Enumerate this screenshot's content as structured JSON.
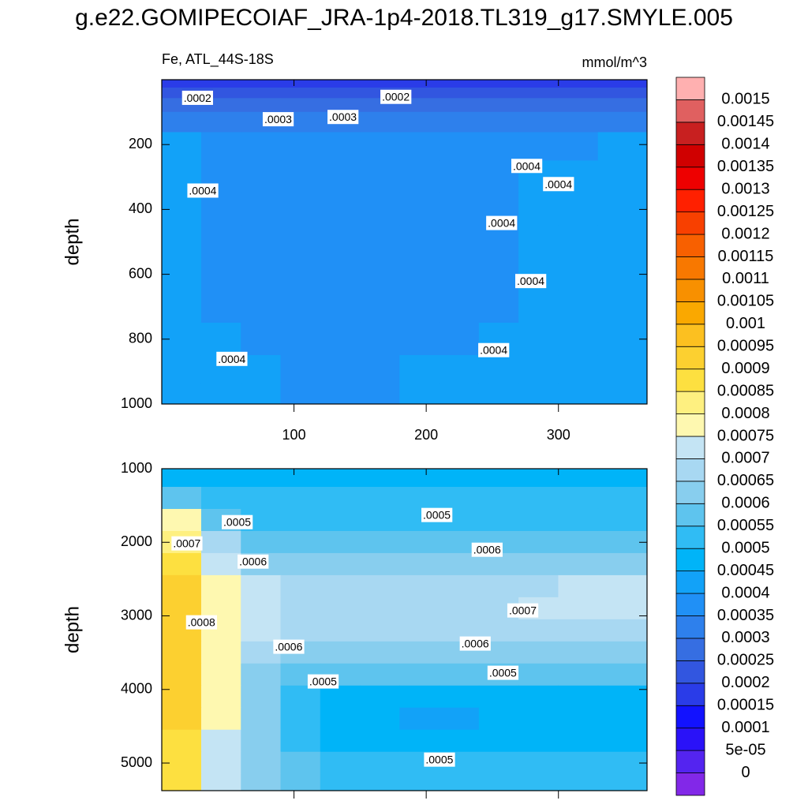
{
  "title": "g.e22.GOMIPECOIAF_JRA-1p4-2018.TL319_g17.SMYLE.005",
  "colorbar": {
    "levels": [
      0,
      {
        "value": 5e-05,
        "label": "5e-05"
      },
      0.0001,
      0.00015,
      0.0002,
      0.00025,
      0.0003,
      0.00035,
      0.0004,
      0.00045,
      0.0005,
      0.00055,
      0.0006,
      0.00065,
      0.0007,
      0.00075,
      0.0008,
      0.00085,
      0.0009,
      0.00095,
      0.001,
      0.00105,
      0.0011,
      0.00115,
      0.0012,
      0.00125,
      0.0013,
      0.00135,
      0.0014,
      0.00145,
      0.0015
    ],
    "colors": [
      "#8228E8",
      "#5424F0",
      "#2A12F8",
      "#1212FF",
      "#2A3CE8",
      "#3256E0",
      "#366EE2",
      "#2E80EC",
      "#2090F6",
      "#12A2F8",
      "#00B4F8",
      "#30BCF4",
      "#5EC4EE",
      "#88CEEE",
      "#A8D8F2",
      "#C4E4F4",
      "#FEF8B0",
      "#FEF080",
      "#FDE040",
      "#FCD030",
      "#FCC020",
      "#FAA800",
      "#F89000",
      "#F87800",
      "#F86000",
      "#F84000",
      "#FF2000",
      "#EE0000",
      "#D00000",
      "#C82020",
      "#E06060",
      "#FFB0B0"
    ]
  },
  "chart_data": [
    {
      "type": "contour",
      "left_label": "Fe, ATL_44S-18S",
      "right_label": "mmol/m^3",
      "ylabel": "depth",
      "xlim": [
        0,
        367
      ],
      "ylim": [
        0,
        1000
      ],
      "y_reversed": true,
      "xticks": [
        100,
        200,
        300
      ],
      "yticks": [
        200,
        400,
        600,
        800,
        1000
      ],
      "xtick_labels": true,
      "x": [
        15,
        45,
        75,
        105,
        135,
        165,
        195,
        225,
        255,
        285,
        315,
        345
      ],
      "y": [
        10,
        40,
        75,
        125,
        200,
        300,
        400,
        500,
        600,
        700,
        800,
        900,
        975
      ],
      "z": [
        [
          0.00018,
          0.00018,
          0.00018,
          0.00018,
          0.00018,
          0.00018,
          0.00018,
          0.00018,
          0.00018,
          0.00018,
          0.00018,
          0.00018
        ],
        [
          0.00022,
          0.00022,
          0.00022,
          0.00022,
          0.00022,
          0.00022,
          0.00022,
          0.00022,
          0.00022,
          0.00022,
          0.00022,
          0.00022
        ],
        [
          0.00028,
          0.00028,
          0.00028,
          0.00028,
          0.00028,
          0.00028,
          0.00028,
          0.00028,
          0.00028,
          0.00028,
          0.00028,
          0.00028
        ],
        [
          0.00032,
          0.00032,
          0.00032,
          0.00032,
          0.00032,
          0.00032,
          0.00032,
          0.00032,
          0.00032,
          0.00032,
          0.00032,
          0.00032
        ],
        [
          0.00041,
          0.00037,
          0.00037,
          0.00037,
          0.00037,
          0.00037,
          0.00037,
          0.00037,
          0.00037,
          0.00037,
          0.00037,
          0.00041
        ],
        [
          0.00042,
          0.00038,
          0.00038,
          0.00038,
          0.00038,
          0.00038,
          0.00038,
          0.00038,
          0.00038,
          0.00041,
          0.00041,
          0.00042
        ],
        [
          0.00042,
          0.00038,
          0.00038,
          0.00038,
          0.00038,
          0.00038,
          0.00038,
          0.00038,
          0.00038,
          0.00041,
          0.00041,
          0.00042
        ],
        [
          0.00042,
          0.00038,
          0.00038,
          0.00038,
          0.00038,
          0.00038,
          0.00038,
          0.00038,
          0.00038,
          0.00041,
          0.00041,
          0.00042
        ],
        [
          0.00042,
          0.00038,
          0.00038,
          0.00038,
          0.00038,
          0.00038,
          0.00038,
          0.00038,
          0.00038,
          0.00041,
          0.00041,
          0.00042
        ],
        [
          0.00042,
          0.00038,
          0.00038,
          0.00038,
          0.00038,
          0.00038,
          0.00038,
          0.00038,
          0.00038,
          0.00041,
          0.00041,
          0.00042
        ],
        [
          0.00043,
          0.00041,
          0.00039,
          0.00038,
          0.00038,
          0.00038,
          0.00038,
          0.00039,
          0.00041,
          0.00043,
          0.00043,
          0.00043
        ],
        [
          0.00044,
          0.00042,
          0.00041,
          0.00039,
          0.00039,
          0.00039,
          0.00041,
          0.00041,
          0.00042,
          0.00044,
          0.00044,
          0.00044
        ],
        [
          0.00044,
          0.00043,
          0.00041,
          0.00039,
          0.00039,
          0.00039,
          0.00041,
          0.00042,
          0.00043,
          0.00044,
          0.00044,
          0.00044
        ]
      ],
      "contour_labels": [
        {
          "text": ".0002",
          "x": 27,
          "y": 59
        },
        {
          "text": ".0002",
          "x": 177,
          "y": 56
        },
        {
          "text": ".0003",
          "x": 88,
          "y": 125
        },
        {
          "text": ".0003",
          "x": 137,
          "y": 118
        },
        {
          "text": ".0004",
          "x": 31,
          "y": 345
        },
        {
          "text": ".0004",
          "x": 276,
          "y": 269
        },
        {
          "text": ".0004",
          "x": 300,
          "y": 325
        },
        {
          "text": ".0004",
          "x": 257,
          "y": 445
        },
        {
          "text": ".0004",
          "x": 279,
          "y": 624
        },
        {
          "text": ".0004",
          "x": 53,
          "y": 864
        },
        {
          "text": ".0004",
          "x": 251,
          "y": 837
        }
      ]
    },
    {
      "type": "contour",
      "ylabel": "depth",
      "xlim": [
        0,
        367
      ],
      "ylim": [
        1000,
        5375
      ],
      "y_reversed": true,
      "xticks": [
        100,
        200,
        300
      ],
      "yticks": [
        1000,
        2000,
        3000,
        4000,
        5000
      ],
      "xtick_labels": false,
      "x": [
        15,
        45,
        75,
        105,
        135,
        165,
        195,
        225,
        255,
        285,
        315,
        345
      ],
      "y": [
        1100,
        1400,
        1700,
        2000,
        2300,
        2600,
        2900,
        3200,
        3500,
        3800,
        4100,
        4400,
        4700,
        5000,
        5300
      ],
      "z": [
        [
          0.00048,
          0.00046,
          0.00046,
          0.00046,
          0.00046,
          0.00046,
          0.00046,
          0.00046,
          0.00046,
          0.00046,
          0.00046,
          0.00046
        ],
        [
          0.00058,
          0.00052,
          0.00051,
          0.00051,
          0.00051,
          0.00051,
          0.00051,
          0.00051,
          0.00051,
          0.00051,
          0.00051,
          0.00051
        ],
        [
          0.00076,
          0.00058,
          0.00054,
          0.00054,
          0.00054,
          0.00054,
          0.00054,
          0.00054,
          0.00054,
          0.00054,
          0.00054,
          0.00054
        ],
        [
          0.00084,
          0.00066,
          0.00058,
          0.00057,
          0.00057,
          0.00057,
          0.00057,
          0.00057,
          0.00057,
          0.00058,
          0.00058,
          0.00058
        ],
        [
          0.00088,
          0.00071,
          0.00063,
          0.00062,
          0.00062,
          0.00062,
          0.00062,
          0.00062,
          0.00062,
          0.00063,
          0.00063,
          0.00063
        ],
        [
          0.00091,
          0.00076,
          0.00071,
          0.00066,
          0.00066,
          0.00066,
          0.00066,
          0.00066,
          0.00067,
          0.00068,
          0.00071,
          0.00071
        ],
        [
          0.00092,
          0.00078,
          0.00072,
          0.00068,
          0.00068,
          0.00068,
          0.00068,
          0.00068,
          0.00068,
          0.00071,
          0.00071,
          0.00071
        ],
        [
          0.00092,
          0.00078,
          0.00071,
          0.00066,
          0.00066,
          0.00066,
          0.00066,
          0.00066,
          0.00066,
          0.00066,
          0.00066,
          0.00066
        ],
        [
          0.00092,
          0.00077,
          0.00066,
          0.00061,
          0.00061,
          0.00061,
          0.00061,
          0.00061,
          0.00061,
          0.00061,
          0.00061,
          0.00061
        ],
        [
          0.00091,
          0.00076,
          0.00062,
          0.00056,
          0.00056,
          0.00056,
          0.00056,
          0.00056,
          0.00056,
          0.00056,
          0.00056,
          0.00056
        ],
        [
          0.00091,
          0.00075,
          0.00061,
          0.00053,
          0.00048,
          0.00048,
          0.00048,
          0.00048,
          0.00048,
          0.00048,
          0.00048,
          0.00048
        ],
        [
          0.00091,
          0.00075,
          0.00061,
          0.00051,
          0.00047,
          0.00046,
          0.00044,
          0.00044,
          0.00046,
          0.00046,
          0.00046,
          0.00046
        ],
        [
          0.00088,
          0.00074,
          0.00061,
          0.00052,
          0.00048,
          0.00047,
          0.00047,
          0.00047,
          0.00047,
          0.00047,
          0.00047,
          0.00047
        ],
        [
          0.00087,
          0.00073,
          0.00062,
          0.00055,
          0.00052,
          0.00051,
          0.00051,
          0.00051,
          0.00051,
          0.00051,
          0.00051,
          0.00051
        ],
        [
          0.00086,
          0.00074,
          0.00064,
          0.00057,
          0.00054,
          0.00053,
          0.00053,
          0.00053,
          0.00053,
          0.00053,
          0.00053,
          0.00053
        ]
      ],
      "contour_labels": [
        {
          "text": ".0005",
          "x": 57,
          "y": 1740
        },
        {
          "text": ".0005",
          "x": 208,
          "y": 1643
        },
        {
          "text": ".0007",
          "x": 19,
          "y": 2029
        },
        {
          "text": ".0006",
          "x": 69,
          "y": 2276
        },
        {
          "text": ".0006",
          "x": 246,
          "y": 2115
        },
        {
          "text": ".0008",
          "x": 30,
          "y": 3101
        },
        {
          "text": ".0007",
          "x": 273,
          "y": 2940
        },
        {
          "text": ".0006",
          "x": 96,
          "y": 3433
        },
        {
          "text": ".0006",
          "x": 237,
          "y": 3390
        },
        {
          "text": ".0005",
          "x": 258,
          "y": 3787
        },
        {
          "text": ".0005",
          "x": 122,
          "y": 3905
        },
        {
          "text": ".0005",
          "x": 210,
          "y": 4967
        }
      ]
    }
  ]
}
